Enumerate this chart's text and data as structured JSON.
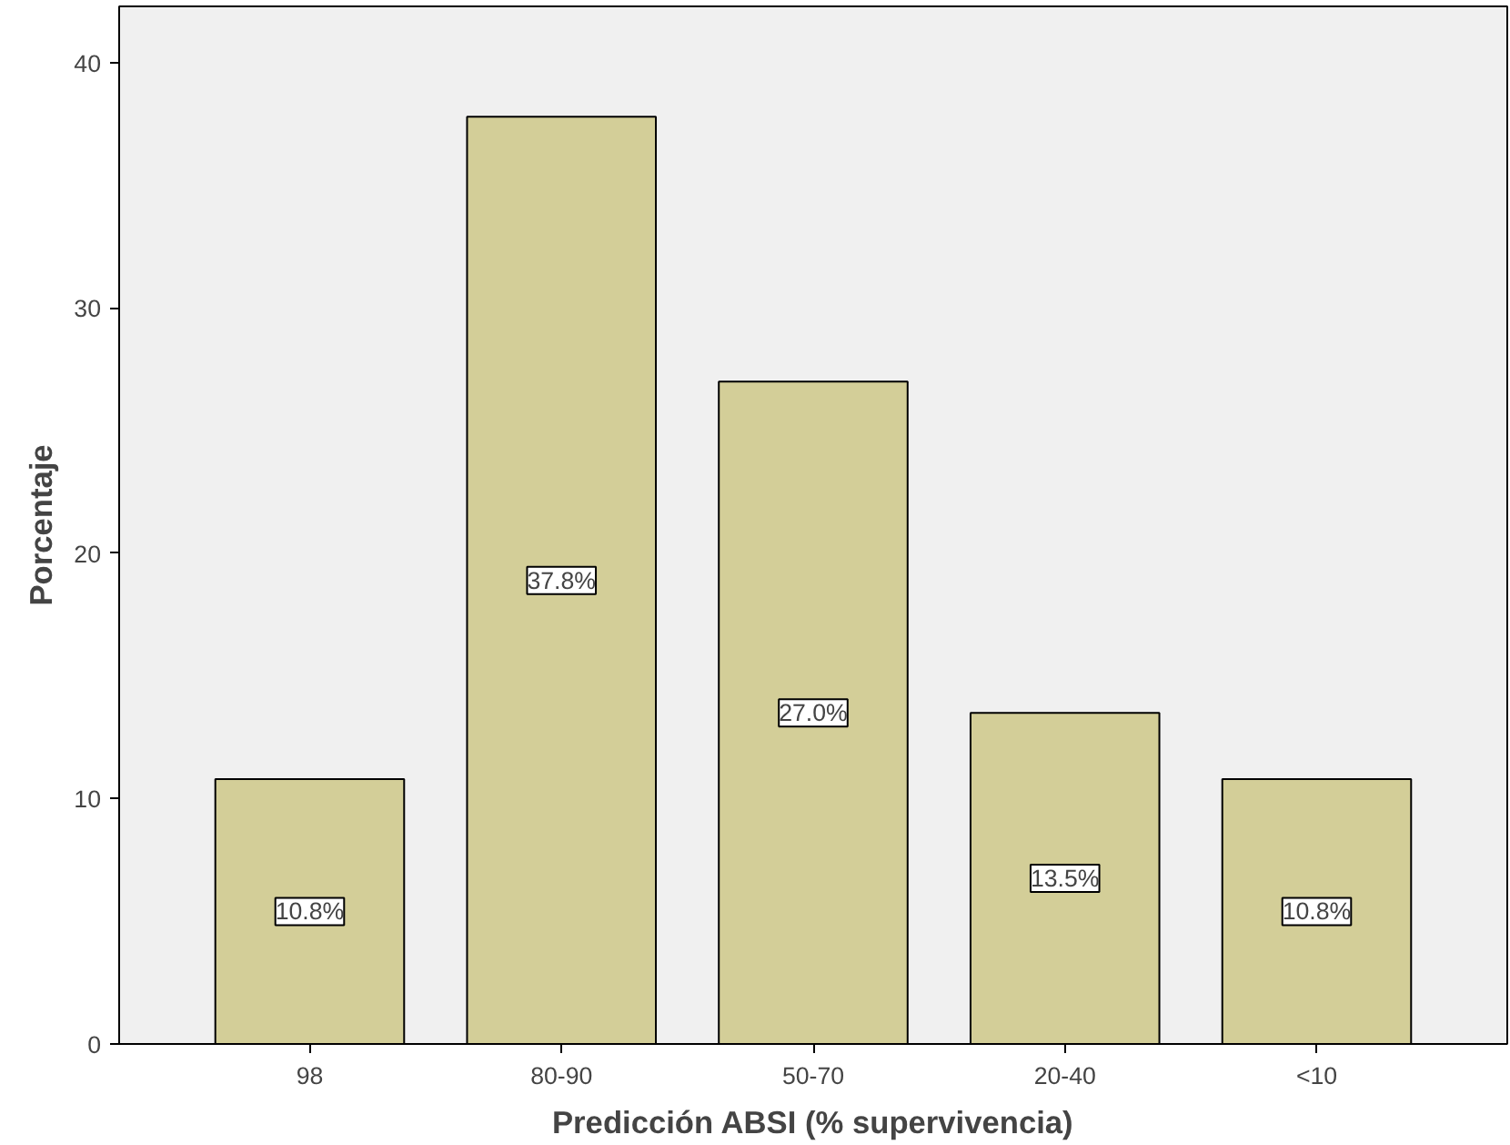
{
  "chart_data": {
    "type": "bar",
    "xlabel": "Predicción ABSI (% supervivencia)",
    "ylabel": "Porcentaje",
    "categories": [
      "98",
      "80-90",
      "50-70",
      "20-40",
      "<10"
    ],
    "values": [
      10.8,
      37.8,
      27.0,
      13.5,
      10.8
    ],
    "value_labels": [
      "10.8%",
      "37.8%",
      "27.0%",
      "13.5%",
      "10.8%"
    ],
    "color": "#d3ce98",
    "ylim": [
      0,
      42.3
    ],
    "yticks": [
      0,
      10,
      20,
      30,
      40
    ],
    "grid": false
  }
}
